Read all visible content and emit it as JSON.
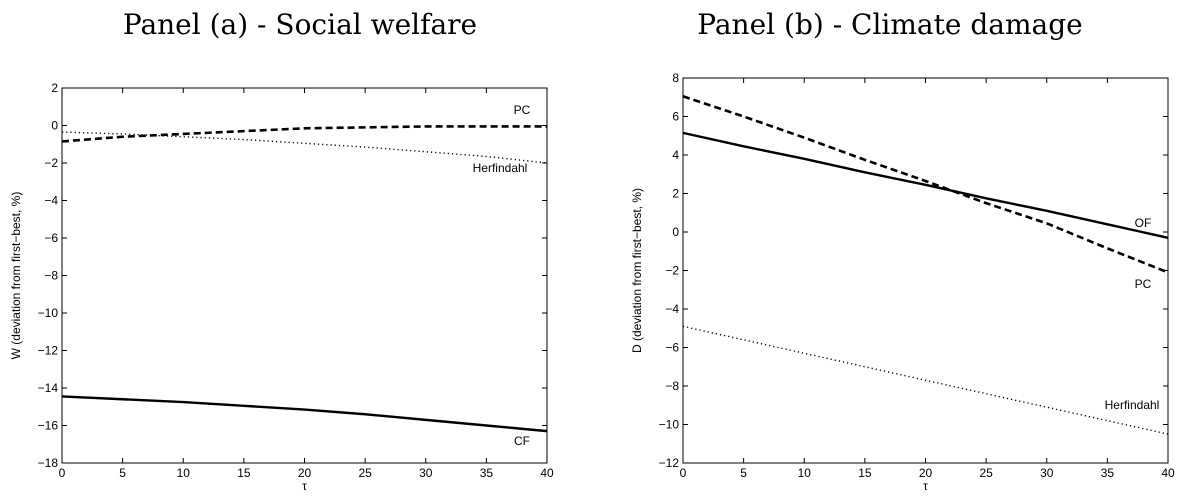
{
  "chart_data": [
    {
      "type": "line",
      "title": "Panel (a) - Social welfare",
      "xlabel": "τ",
      "ylabel": "W (deviation from first−best, %)",
      "xlim": [
        0,
        40
      ],
      "ylim": [
        -18,
        2
      ],
      "xticks": [
        0,
        5,
        10,
        15,
        20,
        25,
        30,
        35,
        40
      ],
      "yticks": [
        -18,
        -16,
        -14,
        -12,
        -10,
        -8,
        -6,
        -4,
        -2,
        0,
        2
      ],
      "grid": false,
      "x": [
        0,
        5,
        10,
        15,
        20,
        25,
        30,
        35,
        40
      ],
      "series": [
        {
          "name": "PC",
          "style": "dashed",
          "values": [
            -0.85,
            -0.6,
            -0.45,
            -0.3,
            -0.15,
            -0.1,
            -0.05,
            -0.05,
            -0.05
          ]
        },
        {
          "name": "Herfindahl",
          "style": "dotted",
          "values": [
            -0.35,
            -0.45,
            -0.6,
            -0.75,
            -0.95,
            -1.15,
            -1.4,
            -1.65,
            -2.0
          ]
        },
        {
          "name": "CF",
          "style": "solid",
          "values": [
            -14.45,
            -14.6,
            -14.75,
            -14.95,
            -15.15,
            -15.4,
            -15.7,
            -16.0,
            -16.3
          ]
        }
      ]
    },
    {
      "type": "line",
      "title": "Panel (b) - Climate damage",
      "xlabel": "τ",
      "ylabel": "D (deviation from first−best, %)",
      "xlim": [
        0,
        40
      ],
      "ylim": [
        -12,
        8
      ],
      "xticks": [
        0,
        5,
        10,
        15,
        20,
        25,
        30,
        35,
        40
      ],
      "yticks": [
        -12,
        -10,
        -8,
        -6,
        -4,
        -2,
        0,
        2,
        4,
        6,
        8
      ],
      "grid": false,
      "x": [
        0,
        5,
        10,
        15,
        20,
        25,
        30,
        35,
        40
      ],
      "series": [
        {
          "name": "OF",
          "style": "solid",
          "values": [
            5.15,
            4.45,
            3.8,
            3.1,
            2.45,
            1.75,
            1.1,
            0.4,
            -0.3
          ]
        },
        {
          "name": "PC",
          "style": "dashed",
          "values": [
            7.05,
            6.0,
            4.9,
            3.75,
            2.65,
            1.5,
            0.45,
            -0.85,
            -2.1
          ]
        },
        {
          "name": "Herfindahl",
          "style": "dotted",
          "values": [
            -4.9,
            -5.6,
            -6.3,
            -7.0,
            -7.7,
            -8.4,
            -9.1,
            -9.8,
            -10.5
          ]
        }
      ]
    }
  ]
}
